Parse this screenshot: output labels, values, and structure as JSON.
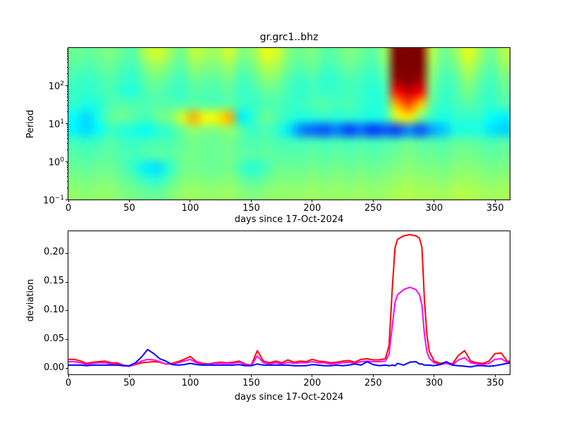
{
  "figure_title": "gr.grc1..bhz",
  "colors": {
    "background": "#ffffff",
    "axis": "#000000",
    "series_red": "#ff0000",
    "series_magenta": "#ff00ff",
    "series_blue": "#0000ff",
    "heatmap_hot_core": "#800000",
    "heatmap_background_green": "#4dffb3"
  },
  "chart_data": [
    {
      "type": "heatmap",
      "title": "gr.grc1..bhz",
      "xlabel": "days since 17-Oct-2024",
      "ylabel": "Period",
      "xlim": [
        0,
        362
      ],
      "x_ticks": [
        0,
        50,
        100,
        150,
        200,
        250,
        300,
        350
      ],
      "yscale": "log",
      "ylim": [
        0.1,
        960
      ],
      "y_ticks": [
        {
          "value": 100,
          "exp": "2"
        },
        {
          "value": 10,
          "exp": "1"
        },
        {
          "value": 1,
          "exp": "0"
        },
        {
          "value": 0.1,
          "exp": "−1"
        }
      ],
      "colormap": "jet",
      "grid_on": false,
      "legend": "none",
      "x_days": [
        0,
        10,
        20,
        30,
        40,
        50,
        60,
        70,
        80,
        90,
        100,
        110,
        120,
        130,
        140,
        150,
        160,
        170,
        180,
        190,
        200,
        210,
        220,
        230,
        240,
        250,
        260,
        270,
        280,
        290,
        300,
        310,
        320,
        330,
        340,
        350,
        360
      ],
      "y_periods": [
        800,
        300,
        120,
        45,
        18,
        9,
        6,
        2.5,
        1,
        0.45,
        0.2,
        0.12
      ],
      "values": [
        [
          0.48,
          0.47,
          0.48,
          0.5,
          0.47,
          0.46,
          0.55,
          0.58,
          0.53,
          0.48,
          0.56,
          0.54,
          0.53,
          0.58,
          0.5,
          0.52,
          0.6,
          0.58,
          0.5,
          0.48,
          0.5,
          0.46,
          0.47,
          0.5,
          0.48,
          0.46,
          0.52,
          1.0,
          1.0,
          1.0,
          0.55,
          0.48,
          0.52,
          0.6,
          0.53,
          0.48,
          0.55
        ],
        [
          0.46,
          0.45,
          0.46,
          0.48,
          0.45,
          0.44,
          0.5,
          0.53,
          0.49,
          0.46,
          0.52,
          0.5,
          0.5,
          0.53,
          0.47,
          0.49,
          0.55,
          0.54,
          0.48,
          0.46,
          0.48,
          0.44,
          0.45,
          0.48,
          0.46,
          0.44,
          0.49,
          1.0,
          1.0,
          1.0,
          0.52,
          0.46,
          0.49,
          0.56,
          0.5,
          0.46,
          0.52
        ],
        [
          0.44,
          0.43,
          0.44,
          0.46,
          0.43,
          0.42,
          0.47,
          0.49,
          0.46,
          0.44,
          0.48,
          0.47,
          0.47,
          0.49,
          0.44,
          0.46,
          0.51,
          0.5,
          0.45,
          0.43,
          0.45,
          0.42,
          0.43,
          0.45,
          0.44,
          0.42,
          0.46,
          0.97,
          1.0,
          0.97,
          0.5,
          0.44,
          0.46,
          0.52,
          0.47,
          0.44,
          0.49
        ],
        [
          0.43,
          0.42,
          0.43,
          0.45,
          0.42,
          0.41,
          0.45,
          0.46,
          0.44,
          0.43,
          0.46,
          0.45,
          0.45,
          0.47,
          0.43,
          0.44,
          0.47,
          0.47,
          0.44,
          0.42,
          0.44,
          0.43,
          0.43,
          0.44,
          0.43,
          0.41,
          0.44,
          0.86,
          0.93,
          0.88,
          0.48,
          0.43,
          0.45,
          0.49,
          0.45,
          0.43,
          0.47
        ],
        [
          0.42,
          0.4,
          0.41,
          0.45,
          0.46,
          0.45,
          0.45,
          0.46,
          0.46,
          0.46,
          0.47,
          0.46,
          0.46,
          0.47,
          0.43,
          0.43,
          0.45,
          0.45,
          0.43,
          0.43,
          0.45,
          0.46,
          0.44,
          0.45,
          0.43,
          0.41,
          0.43,
          0.7,
          0.8,
          0.68,
          0.46,
          0.42,
          0.44,
          0.46,
          0.44,
          0.42,
          0.45
        ],
        [
          0.38,
          0.34,
          0.4,
          0.47,
          0.48,
          0.46,
          0.44,
          0.48,
          0.5,
          0.58,
          0.7,
          0.62,
          0.64,
          0.7,
          0.36,
          0.42,
          0.48,
          0.45,
          0.42,
          0.4,
          0.41,
          0.42,
          0.41,
          0.42,
          0.41,
          0.4,
          0.42,
          0.58,
          0.64,
          0.5,
          0.42,
          0.4,
          0.42,
          0.42,
          0.42,
          0.38,
          0.36
        ],
        [
          0.37,
          0.34,
          0.38,
          0.43,
          0.41,
          0.4,
          0.38,
          0.41,
          0.43,
          0.48,
          0.52,
          0.5,
          0.5,
          0.52,
          0.46,
          0.43,
          0.45,
          0.42,
          0.35,
          0.25,
          0.22,
          0.2,
          0.24,
          0.18,
          0.22,
          0.17,
          0.2,
          0.18,
          0.25,
          0.2,
          0.28,
          0.32,
          0.4,
          0.4,
          0.4,
          0.35,
          0.33
        ],
        [
          0.44,
          0.43,
          0.44,
          0.46,
          0.44,
          0.43,
          0.44,
          0.45,
          0.45,
          0.47,
          0.49,
          0.48,
          0.48,
          0.49,
          0.46,
          0.45,
          0.46,
          0.45,
          0.44,
          0.44,
          0.45,
          0.44,
          0.45,
          0.44,
          0.45,
          0.44,
          0.45,
          0.46,
          0.48,
          0.46,
          0.46,
          0.45,
          0.47,
          0.47,
          0.46,
          0.45,
          0.46
        ],
        [
          0.46,
          0.45,
          0.46,
          0.47,
          0.45,
          0.44,
          0.45,
          0.46,
          0.46,
          0.48,
          0.49,
          0.48,
          0.48,
          0.49,
          0.47,
          0.46,
          0.47,
          0.46,
          0.46,
          0.46,
          0.47,
          0.46,
          0.47,
          0.46,
          0.47,
          0.46,
          0.47,
          0.48,
          0.5,
          0.48,
          0.48,
          0.47,
          0.49,
          0.49,
          0.48,
          0.47,
          0.48
        ],
        [
          0.48,
          0.47,
          0.48,
          0.48,
          0.46,
          0.42,
          0.36,
          0.35,
          0.42,
          0.48,
          0.49,
          0.48,
          0.48,
          0.49,
          0.44,
          0.41,
          0.44,
          0.48,
          0.48,
          0.48,
          0.49,
          0.48,
          0.49,
          0.48,
          0.49,
          0.48,
          0.49,
          0.5,
          0.51,
          0.5,
          0.5,
          0.49,
          0.51,
          0.51,
          0.5,
          0.49,
          0.5
        ],
        [
          0.5,
          0.49,
          0.5,
          0.5,
          0.48,
          0.46,
          0.43,
          0.42,
          0.46,
          0.5,
          0.51,
          0.5,
          0.5,
          0.51,
          0.48,
          0.46,
          0.48,
          0.5,
          0.5,
          0.5,
          0.51,
          0.5,
          0.51,
          0.5,
          0.51,
          0.5,
          0.51,
          0.52,
          0.53,
          0.52,
          0.52,
          0.51,
          0.53,
          0.53,
          0.52,
          0.51,
          0.52
        ],
        [
          0.52,
          0.51,
          0.52,
          0.52,
          0.5,
          0.49,
          0.48,
          0.47,
          0.5,
          0.52,
          0.53,
          0.52,
          0.52,
          0.53,
          0.51,
          0.5,
          0.51,
          0.52,
          0.52,
          0.52,
          0.53,
          0.52,
          0.53,
          0.52,
          0.53,
          0.52,
          0.53,
          0.54,
          0.55,
          0.54,
          0.54,
          0.53,
          0.55,
          0.55,
          0.54,
          0.53,
          0.54
        ]
      ]
    },
    {
      "type": "line",
      "xlabel": "days since 17-Oct-2024",
      "ylabel": "deviation",
      "xlim": [
        0,
        362
      ],
      "ylim": [
        -0.01,
        0.238
      ],
      "x_ticks": [
        0,
        50,
        100,
        150,
        200,
        250,
        300,
        350
      ],
      "y_ticks": [
        {
          "value": 0.0,
          "label": "0.00"
        },
        {
          "value": 0.05,
          "label": "0.05"
        },
        {
          "value": 0.1,
          "label": "0.10"
        },
        {
          "value": 0.15,
          "label": "0.15"
        },
        {
          "value": 0.2,
          "label": "0.20"
        }
      ],
      "grid_on": false,
      "legend": "none",
      "x": [
        0,
        5,
        10,
        15,
        20,
        25,
        30,
        35,
        40,
        45,
        50,
        55,
        60,
        65,
        70,
        75,
        80,
        85,
        90,
        95,
        100,
        105,
        110,
        115,
        120,
        125,
        130,
        135,
        140,
        145,
        150,
        155,
        160,
        165,
        170,
        175,
        180,
        185,
        190,
        195,
        200,
        205,
        210,
        215,
        220,
        225,
        230,
        235,
        240,
        245,
        250,
        255,
        260,
        263,
        266,
        268,
        270,
        275,
        280,
        285,
        288,
        290,
        292,
        294,
        296,
        300,
        305,
        310,
        315,
        320,
        325,
        330,
        335,
        340,
        345,
        350,
        355,
        360,
        365
      ],
      "series": [
        {
          "name": "red",
          "color": "#ff0000",
          "values": [
            0.016,
            0.016,
            0.013,
            0.009,
            0.011,
            0.012,
            0.013,
            0.01,
            0.01,
            0.006,
            0.004,
            0.007,
            0.01,
            0.011,
            0.012,
            0.011,
            0.008,
            0.009,
            0.012,
            0.016,
            0.021,
            0.012,
            0.009,
            0.008,
            0.01,
            0.011,
            0.01,
            0.011,
            0.013,
            0.008,
            0.006,
            0.031,
            0.013,
            0.01,
            0.013,
            0.01,
            0.015,
            0.011,
            0.013,
            0.012,
            0.016,
            0.013,
            0.012,
            0.01,
            0.011,
            0.013,
            0.014,
            0.011,
            0.016,
            0.017,
            0.015,
            0.015,
            0.017,
            0.04,
            0.15,
            0.21,
            0.224,
            0.23,
            0.232,
            0.23,
            0.226,
            0.21,
            0.12,
            0.06,
            0.03,
            0.013,
            0.009,
            0.011,
            0.008,
            0.023,
            0.031,
            0.013,
            0.01,
            0.009,
            0.013,
            0.026,
            0.027,
            0.013,
            0.012
          ]
        },
        {
          "name": "magenta",
          "color": "#ff00ff",
          "values": [
            0.012,
            0.012,
            0.01,
            0.007,
            0.009,
            0.01,
            0.01,
            0.008,
            0.008,
            0.005,
            0.004,
            0.008,
            0.013,
            0.016,
            0.015,
            0.012,
            0.008,
            0.008,
            0.01,
            0.013,
            0.016,
            0.01,
            0.008,
            0.007,
            0.009,
            0.009,
            0.009,
            0.009,
            0.011,
            0.007,
            0.005,
            0.022,
            0.01,
            0.008,
            0.01,
            0.008,
            0.011,
            0.009,
            0.01,
            0.01,
            0.012,
            0.01,
            0.01,
            0.008,
            0.009,
            0.01,
            0.011,
            0.009,
            0.012,
            0.013,
            0.012,
            0.012,
            0.013,
            0.025,
            0.08,
            0.115,
            0.128,
            0.137,
            0.141,
            0.137,
            0.128,
            0.11,
            0.06,
            0.03,
            0.018,
            0.01,
            0.007,
            0.009,
            0.006,
            0.015,
            0.019,
            0.01,
            0.008,
            0.007,
            0.009,
            0.016,
            0.017,
            0.011,
            0.01
          ]
        },
        {
          "name": "blue",
          "color": "#0000ff",
          "values": [
            0.006,
            0.006,
            0.006,
            0.005,
            0.006,
            0.006,
            0.006,
            0.006,
            0.006,
            0.005,
            0.005,
            0.01,
            0.02,
            0.033,
            0.026,
            0.017,
            0.013,
            0.007,
            0.006,
            0.007,
            0.009,
            0.007,
            0.006,
            0.006,
            0.006,
            0.006,
            0.006,
            0.006,
            0.007,
            0.005,
            0.005,
            0.008,
            0.006,
            0.006,
            0.006,
            0.006,
            0.006,
            0.005,
            0.005,
            0.005,
            0.007,
            0.006,
            0.005,
            0.005,
            0.006,
            0.005,
            0.006,
            0.008,
            0.006,
            0.012,
            0.007,
            0.005,
            0.006,
            0.005,
            0.006,
            0.005,
            0.009,
            0.006,
            0.011,
            0.012,
            0.008,
            0.008,
            0.006,
            0.006,
            0.006,
            0.005,
            0.007,
            0.012,
            0.006,
            0.005,
            0.004,
            0.003,
            0.005,
            0.005,
            0.004,
            0.005,
            0.007,
            0.009,
            0.011
          ]
        }
      ]
    }
  ]
}
